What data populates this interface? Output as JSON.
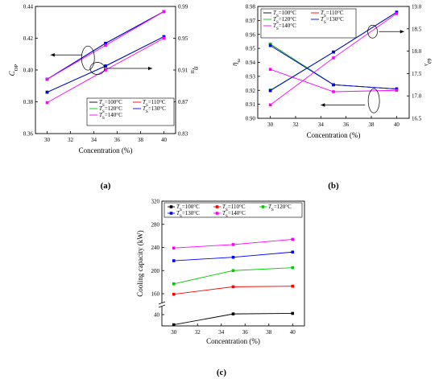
{
  "chart_data": [
    {
      "type": "line",
      "panel_label": "(a)",
      "xlabel": "Concentration (%)",
      "ylabel_left": "COP",
      "ylabel_right": "ηII",
      "x_ticks": [
        "30",
        "32",
        "34",
        "36",
        "38",
        "40"
      ],
      "y_left_ticks": [
        "0.36",
        "0.38",
        "0.40",
        "0.42",
        "0.44"
      ],
      "y_right_ticks": [
        "0.83",
        "0.87",
        "0.91",
        "0.95",
        "0.99"
      ],
      "xlim": [
        29,
        41
      ],
      "ylim_left": [
        0.36,
        0.44
      ],
      "ylim_right": [
        0.83,
        0.99
      ],
      "legend_position": "lower-right",
      "legend_labels": [
        "TS=100°C",
        "TS=110°C",
        "TS=120°C",
        "TS=130°C",
        "TS=140°C"
      ],
      "series": [
        {
          "name": "TS=100°C",
          "color": "#000000",
          "axis": "left",
          "x": [
            30,
            35,
            40
          ],
          "values": [
            0.3942,
            0.4168,
            0.4368
          ]
        },
        {
          "name": "TS=110°C",
          "color": "#ff0000",
          "axis": "left",
          "x": [
            30,
            35,
            40
          ],
          "values": [
            0.3942,
            0.4168,
            0.4368
          ]
        },
        {
          "name": "TS=120°C",
          "color": "#00cc00",
          "axis": "left",
          "x": [
            30,
            35,
            40
          ],
          "values": [
            0.3942,
            0.4168,
            0.4368
          ]
        },
        {
          "name": "TS=130°C",
          "color": "#0000ff",
          "axis": "left",
          "x": [
            30,
            35,
            40
          ],
          "values": [
            0.3942,
            0.4168,
            0.4368
          ]
        },
        {
          "name": "TS=140°C",
          "color": "#ff00ff",
          "axis": "left",
          "x": [
            30,
            35,
            40
          ],
          "values": [
            0.3942,
            0.4155,
            0.4368
          ]
        },
        {
          "name": "TS=100°C",
          "color": "#000000",
          "axis": "right",
          "x": [
            30,
            35,
            40
          ],
          "values": [
            0.882,
            0.915,
            0.952
          ]
        },
        {
          "name": "TS=110°C",
          "color": "#ff0000",
          "axis": "right",
          "x": [
            30,
            35,
            40
          ],
          "values": [
            0.882,
            0.915,
            0.952
          ]
        },
        {
          "name": "TS=120°C",
          "color": "#00cc00",
          "axis": "right",
          "x": [
            30,
            35,
            40
          ],
          "values": [
            0.882,
            0.915,
            0.952
          ]
        },
        {
          "name": "TS=130°C",
          "color": "#0000ff",
          "axis": "right",
          "x": [
            30,
            35,
            40
          ],
          "values": [
            0.882,
            0.915,
            0.952
          ]
        },
        {
          "name": "TS=140°C",
          "color": "#ff00ff",
          "axis": "right",
          "x": [
            30,
            35,
            40
          ],
          "values": [
            0.869,
            0.91,
            0.95
          ]
        }
      ]
    },
    {
      "type": "line",
      "panel_label": "(b)",
      "xlabel": "Concentration (%)",
      "ylabel_left": "ηω",
      "ylabel_right": "ωλ",
      "x_ticks": [
        "30",
        "32",
        "34",
        "36",
        "38",
        "40"
      ],
      "y_left_ticks": [
        "0.90",
        "0.91",
        "0.92",
        "0.93",
        "0.94",
        "0.95",
        "0.96",
        "0.97",
        "0.98"
      ],
      "y_right_ticks": [
        "16.5",
        "17.0",
        "17.5",
        "18.0",
        "18.5",
        "19.0"
      ],
      "xlim": [
        29,
        41
      ],
      "ylim_left": [
        0.9,
        0.98
      ],
      "ylim_right": [
        16.5,
        19.0
      ],
      "legend_position": "top-left",
      "legend_labels": [
        "TS=100°C",
        "TS=110°C",
        "TS=120°C",
        "TS=130°C",
        "TS=140°C"
      ],
      "series": [
        {
          "name": "TS=100°C",
          "color": "#000000",
          "axis": "left",
          "x": [
            30,
            35,
            40
          ],
          "values": [
            0.953,
            0.924,
            0.921
          ]
        },
        {
          "name": "TS=110°C",
          "color": "#ff0000",
          "axis": "left",
          "x": [
            30,
            35,
            40
          ],
          "values": [
            0.953,
            0.924,
            0.921
          ]
        },
        {
          "name": "TS=120°C",
          "color": "#00cc00",
          "axis": "left",
          "x": [
            30,
            35,
            40
          ],
          "values": [
            0.953,
            0.924,
            0.921
          ]
        },
        {
          "name": "TS=130°C",
          "color": "#0000ff",
          "axis": "left",
          "x": [
            30,
            35,
            40
          ],
          "values": [
            0.952,
            0.924,
            0.921
          ]
        },
        {
          "name": "TS=140°C",
          "color": "#ff00ff",
          "axis": "left",
          "x": [
            30,
            35,
            40
          ],
          "values": [
            0.935,
            0.919,
            0.92
          ]
        },
        {
          "name": "TS=100°C",
          "color": "#000000",
          "axis": "right",
          "x": [
            30,
            35,
            40
          ],
          "values": [
            17.12,
            17.98,
            18.87
          ]
        },
        {
          "name": "TS=110°C",
          "color": "#ff0000",
          "axis": "right",
          "x": [
            30,
            35,
            40
          ],
          "values": [
            17.12,
            17.98,
            18.87
          ]
        },
        {
          "name": "TS=120°C",
          "color": "#00cc00",
          "axis": "right",
          "x": [
            30,
            35,
            40
          ],
          "values": [
            17.13,
            17.98,
            18.87
          ]
        },
        {
          "name": "TS=130°C",
          "color": "#0000ff",
          "axis": "right",
          "x": [
            30,
            35,
            40
          ],
          "values": [
            17.12,
            17.98,
            18.87
          ]
        },
        {
          "name": "TS=140°C",
          "color": "#ff00ff",
          "axis": "right",
          "x": [
            30,
            35,
            40
          ],
          "values": [
            16.8,
            17.85,
            18.84
          ]
        }
      ]
    },
    {
      "type": "line",
      "panel_label": "(c)",
      "xlabel": "Concentration (%)",
      "ylabel": "Cooling capacity (kW)",
      "x_ticks": [
        "30",
        "32",
        "34",
        "36",
        "38",
        "40"
      ],
      "y_ticks": [
        "40",
        "160",
        "200",
        "240",
        "280",
        "320"
      ],
      "xlim": [
        29,
        41
      ],
      "y_axis_break": "between 40 and 160",
      "legend_position": "top",
      "legend_labels": [
        "TS=100°C",
        "TS=110°C",
        "TS=120°C",
        "TS=130°C",
        "TS=140°C"
      ],
      "series": [
        {
          "name": "TS=100°C",
          "color": "#000000",
          "x": [
            30,
            35,
            40
          ],
          "values": [
            22,
            44,
            47
          ]
        },
        {
          "name": "TS=110°C",
          "color": "#ff0000",
          "x": [
            30,
            35,
            40
          ],
          "values": [
            157,
            172,
            173
          ]
        },
        {
          "name": "TS=120°C",
          "color": "#00cc00",
          "x": [
            30,
            35,
            40
          ],
          "values": [
            177,
            200,
            205
          ]
        },
        {
          "name": "TS=130°C",
          "color": "#0000ff",
          "x": [
            30,
            35,
            40
          ],
          "values": [
            217,
            223,
            232
          ]
        },
        {
          "name": "TS=140°C",
          "color": "#ff00ff",
          "x": [
            30,
            35,
            40
          ],
          "values": [
            239,
            245,
            254
          ]
        }
      ]
    }
  ]
}
